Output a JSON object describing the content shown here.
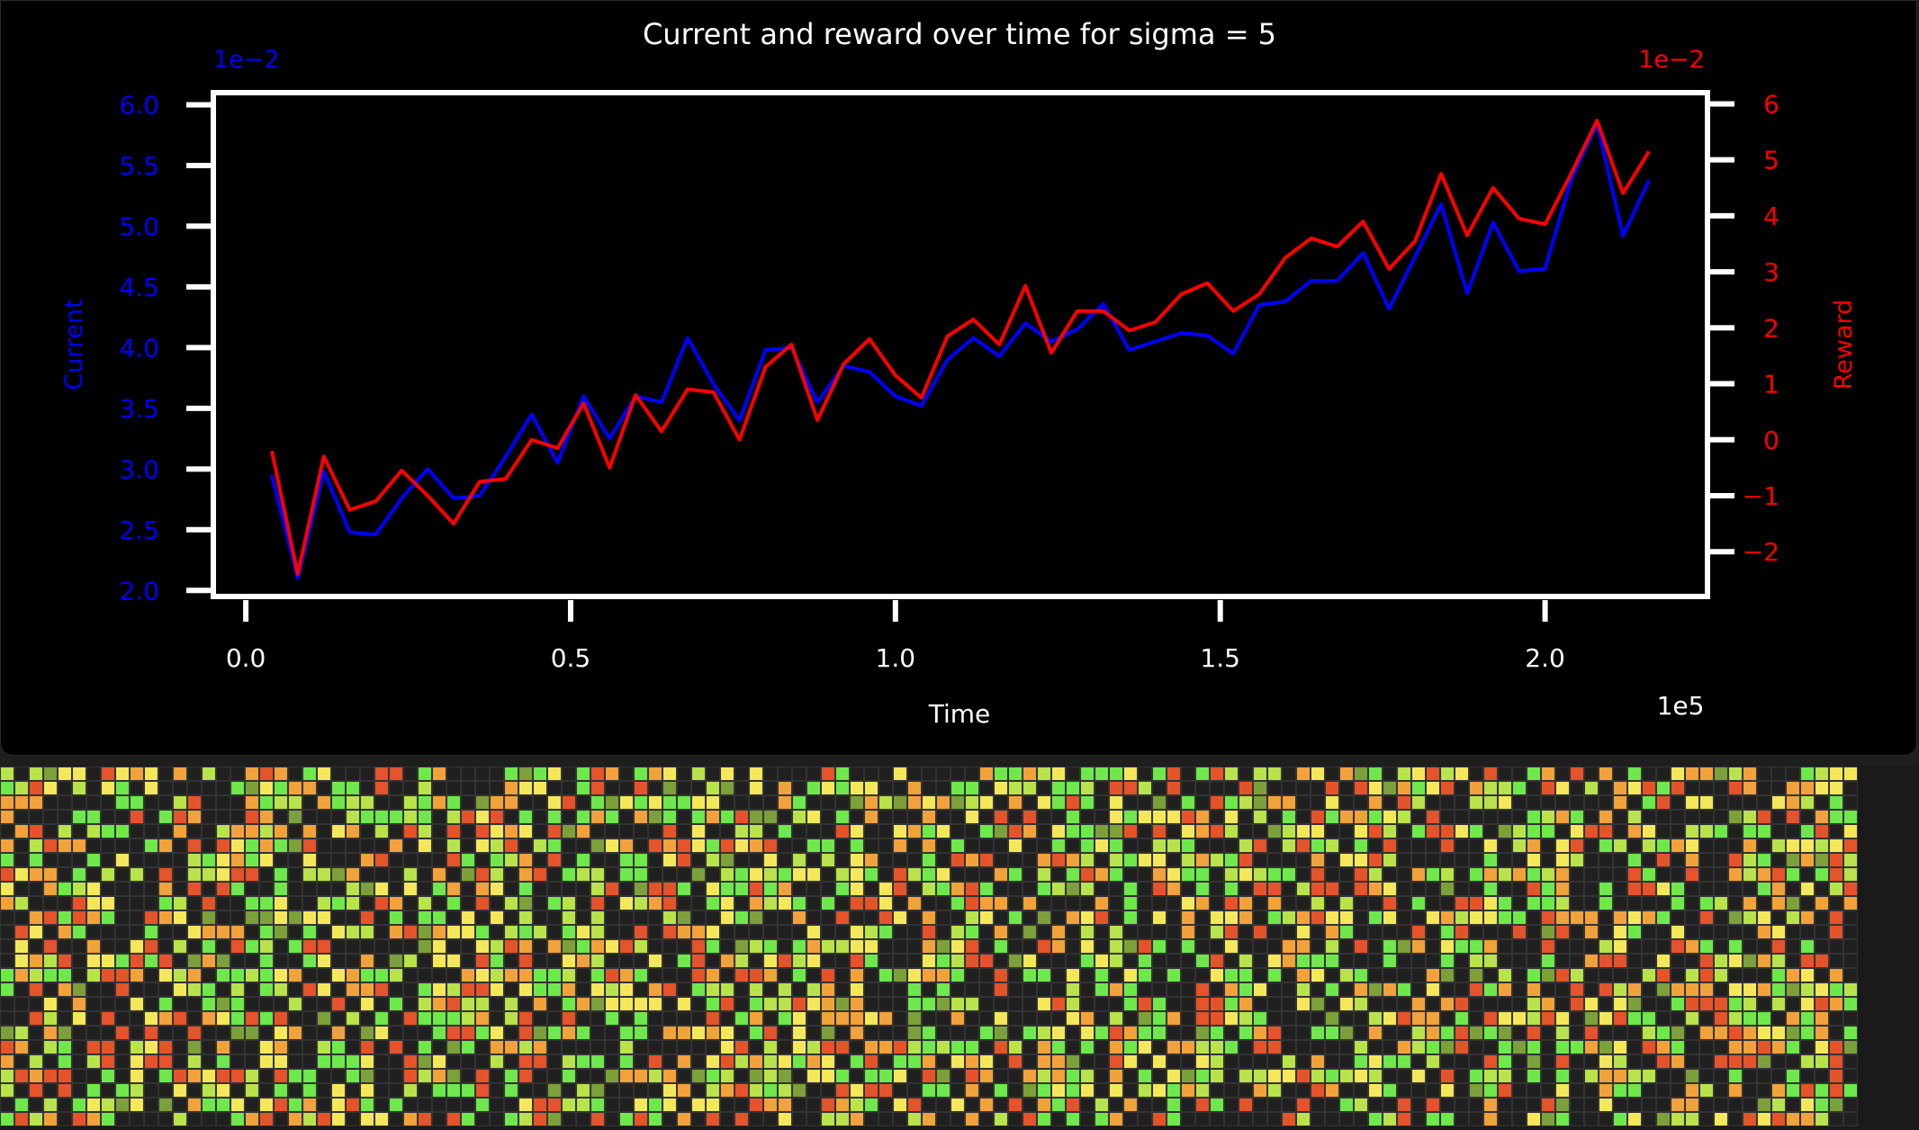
{
  "chart_data": {
    "type": "line",
    "title": "Current and reward over time for sigma = 5",
    "xlabel": "Time",
    "x_offset_text": "1e5",
    "xlim": [
      -0.05,
      2.25
    ],
    "xticks": [
      "0.0",
      "0.5",
      "1.0",
      "1.5",
      "2.0"
    ],
    "left_axis": {
      "label": "Current",
      "offset_text": "1e−2",
      "ylim": [
        1.95,
        6.1
      ],
      "ticks": [
        "2.0",
        "2.5",
        "3.0",
        "3.5",
        "4.0",
        "4.5",
        "5.0",
        "5.5",
        "6.0"
      ],
      "color": "#0000ff"
    },
    "right_axis": {
      "label": "Reward",
      "offset_text": "1e−2",
      "ylim": [
        -2.8,
        6.2
      ],
      "ticks": [
        "−2",
        "−1",
        "0",
        "1",
        "2",
        "3",
        "4",
        "5",
        "6"
      ],
      "color": "#ff0000"
    },
    "x": [
      0.04,
      0.08,
      0.12,
      0.16,
      0.2,
      0.24,
      0.28,
      0.32,
      0.36,
      0.4,
      0.44,
      0.48,
      0.52,
      0.56,
      0.6,
      0.64,
      0.68,
      0.72,
      0.76,
      0.8,
      0.84,
      0.88,
      0.92,
      0.96,
      1.0,
      1.04,
      1.08,
      1.12,
      1.16,
      1.2,
      1.24,
      1.28,
      1.32,
      1.36,
      1.4,
      1.44,
      1.48,
      1.52,
      1.56,
      1.6,
      1.64,
      1.68,
      1.72,
      1.76,
      1.8,
      1.84,
      1.88,
      1.92,
      1.96,
      2.0,
      2.04,
      2.08,
      2.12,
      2.16
    ],
    "series": [
      {
        "name": "Current",
        "axis": "left",
        "color": "#0000ff",
        "values": [
          2.95,
          2.1,
          2.98,
          2.48,
          2.46,
          2.76,
          3.0,
          2.76,
          2.78,
          3.1,
          3.45,
          3.05,
          3.6,
          3.25,
          3.6,
          3.55,
          4.08,
          3.7,
          3.4,
          3.98,
          4.0,
          3.55,
          3.85,
          3.8,
          3.6,
          3.52,
          3.9,
          4.08,
          3.93,
          4.2,
          4.05,
          4.15,
          4.36,
          3.98,
          4.05,
          4.12,
          4.1,
          3.95,
          4.35,
          4.38,
          4.55,
          4.55,
          4.78,
          4.32,
          4.75,
          5.18,
          4.45,
          5.03,
          4.63,
          4.65,
          5.38,
          5.85,
          4.92,
          5.38
        ]
      },
      {
        "name": "Reward",
        "axis": "right",
        "color": "#ff0000",
        "values": [
          -0.2,
          -2.4,
          -0.3,
          -1.25,
          -1.1,
          -0.55,
          -1.0,
          -1.5,
          -0.75,
          -0.7,
          0.0,
          -0.15,
          0.65,
          -0.5,
          0.8,
          0.15,
          0.9,
          0.85,
          0.0,
          1.3,
          1.7,
          0.35,
          1.35,
          1.8,
          1.15,
          0.75,
          1.85,
          2.15,
          1.7,
          2.75,
          1.55,
          2.3,
          2.3,
          1.95,
          2.1,
          2.6,
          2.8,
          2.3,
          2.6,
          3.25,
          3.6,
          3.45,
          3.9,
          3.05,
          3.55,
          4.75,
          3.65,
          4.5,
          3.95,
          3.85,
          4.75,
          5.7,
          4.4,
          5.15
        ]
      }
    ],
    "grid": false
  },
  "pixel_grid": {
    "colors": [
      "#202020",
      "#6ee84a",
      "#b8e34a",
      "#f4e85a",
      "#f2a23a",
      "#e5532a",
      "#7ca03a"
    ],
    "columns": 129,
    "rows": 25
  }
}
